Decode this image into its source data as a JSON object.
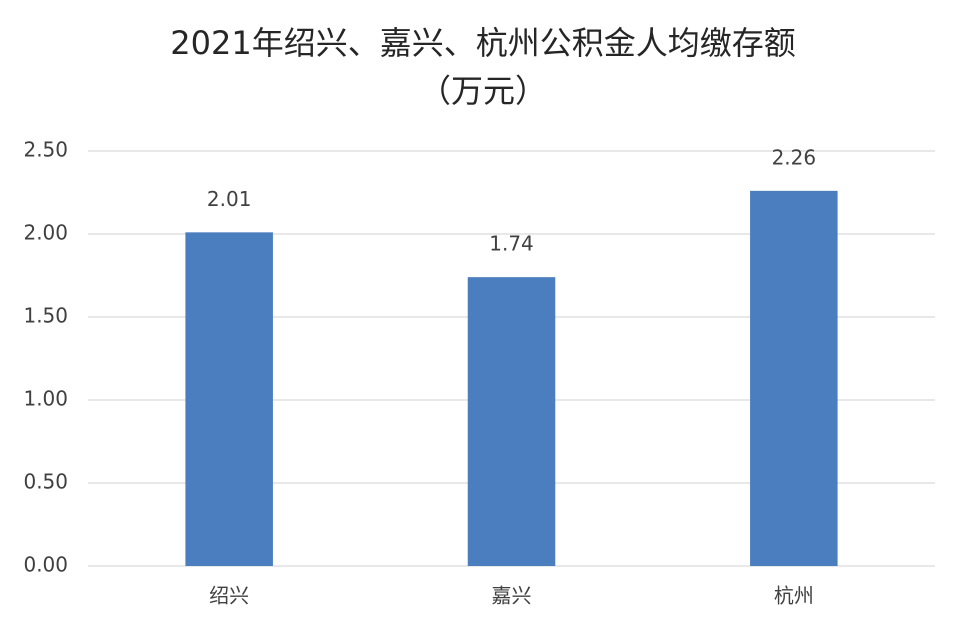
{
  "chart_data": {
    "type": "bar",
    "title": "2021年绍兴、嘉兴、杭州公积金人均缴存额",
    "subtitle": "（万元）",
    "categories": [
      "绍兴",
      "嘉兴",
      "杭州"
    ],
    "values": [
      2.01,
      1.74,
      2.26
    ],
    "color": "#4a7ebf",
    "ylim": [
      0,
      2.5
    ],
    "yticks": [
      {
        "value": 0,
        "label": "0.00"
      },
      {
        "value": 0.5,
        "label": "0.50"
      },
      {
        "value": 1,
        "label": "1.00"
      },
      {
        "value": 1.5,
        "label": "1.50"
      },
      {
        "value": 2,
        "label": "2.00"
      },
      {
        "value": 2.5,
        "label": "2.50"
      }
    ],
    "grid": true
  }
}
